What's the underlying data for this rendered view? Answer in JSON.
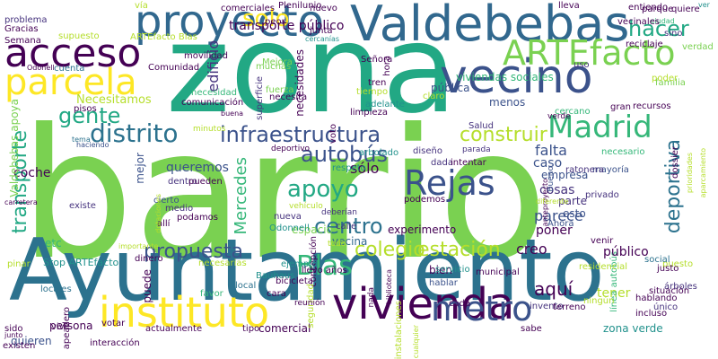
{
  "palette": {
    "lime": "#7ad151",
    "light_green": "#b5de2b",
    "yellow": "#fde725",
    "teal": "#21918c",
    "green": "#35b779",
    "sea": "#22a884",
    "blue": "#31688e",
    "steel": "#2c728e",
    "indigo": "#3b528b",
    "violet": "#46337e",
    "purple": "#440154",
    "aqua": "#1f9e89"
  },
  "words": [
    {
      "text": "barrio",
      "color": "lime",
      "v": false
    },
    {
      "text": "zona",
      "color": "sea",
      "v": false
    },
    {
      "text": "Ayuntamiento",
      "color": "steel",
      "v": false
    },
    {
      "text": "Valdebebas",
      "color": "blue",
      "v": false
    },
    {
      "text": "vivienda",
      "color": "purple",
      "v": false
    },
    {
      "text": "instituto",
      "color": "yellow",
      "v": false
    },
    {
      "text": "proyecto",
      "color": "blue",
      "v": false
    },
    {
      "text": "vecino",
      "color": "indigo",
      "v": false
    },
    {
      "text": "acceso",
      "color": "purple",
      "v": false
    },
    {
      "text": "parcela",
      "color": "yellow",
      "v": false
    },
    {
      "text": "ARTEfacto",
      "color": "lime",
      "v": false
    },
    {
      "text": "Madrid",
      "color": "green",
      "v": false
    },
    {
      "text": "Rejas",
      "color": "indigo",
      "v": false
    },
    {
      "text": "infraestructura",
      "color": "indigo",
      "v": false
    },
    {
      "text": "metro",
      "color": "indigo",
      "v": false
    },
    {
      "text": "Blas",
      "color": "green",
      "v": false
    },
    {
      "text": "solo",
      "color": "yellow",
      "v": false
    },
    {
      "text": "hacer",
      "color": "sea",
      "v": false
    },
    {
      "text": "distrito",
      "color": "steel",
      "v": false
    },
    {
      "text": "gente",
      "color": "sea",
      "v": false
    },
    {
      "text": "construir",
      "color": "light_green",
      "v": false
    },
    {
      "text": "apoyo",
      "color": "sea",
      "v": false
    },
    {
      "text": "autobús",
      "color": "indigo",
      "v": false
    },
    {
      "text": "centro",
      "color": "steel",
      "v": false
    },
    {
      "text": "colegio",
      "color": "light_green",
      "v": false
    },
    {
      "text": "estación",
      "color": "light_green",
      "v": false
    },
    {
      "text": "propuesta",
      "color": "indigo",
      "v": false
    },
    {
      "text": "transporte",
      "color": "sea",
      "v": true
    },
    {
      "text": "deportiva",
      "color": "steel",
      "v": true
    },
    {
      "text": "Mercedes",
      "color": "green",
      "v": true
    },
    {
      "text": "transporte público",
      "color": "purple",
      "v": false
    },
    {
      "text": "Plenilunio",
      "color": "purple",
      "v": false
    },
    {
      "text": "edificio",
      "color": "violet",
      "v": true
    },
    {
      "text": "necesidades",
      "color": "purple",
      "v": true
    },
    {
      "text": "Necesitamos",
      "color": "light_green",
      "v": false
    },
    {
      "text": "queremos",
      "color": "indigo",
      "v": false
    },
    {
      "text": "persona",
      "color": "purple",
      "v": false
    },
    {
      "text": "quieren",
      "color": "indigo",
      "v": false
    },
    {
      "text": "aquí",
      "color": "purple",
      "v": false
    },
    {
      "text": "creo",
      "color": "purple",
      "v": false
    },
    {
      "text": "parece",
      "color": "indigo",
      "v": false
    },
    {
      "text": "experimento",
      "color": "purple",
      "v": false
    },
    {
      "text": "caso",
      "color": "indigo",
      "v": false
    },
    {
      "text": "cosas",
      "color": "violet",
      "v": false
    },
    {
      "text": "empresa",
      "color": "indigo",
      "v": false
    },
    {
      "text": "poner",
      "color": "purple",
      "v": false
    },
    {
      "text": "vecina",
      "color": "blue",
      "v": false
    },
    {
      "text": "comercial",
      "color": "purple",
      "v": false
    },
    {
      "text": "falta",
      "color": "indigo",
      "v": false
    },
    {
      "text": "sólo",
      "color": "purple",
      "v": false
    },
    {
      "text": "coche",
      "color": "purple",
      "v": false
    },
    {
      "text": "problema",
      "color": "violet",
      "v": false
    },
    {
      "text": "tema",
      "color": "steel",
      "v": false
    },
    {
      "text": "mejor",
      "color": "indigo",
      "v": true
    },
    {
      "text": "puede",
      "color": "purple",
      "v": true
    },
    {
      "text": "tener",
      "color": "light_green",
      "v": false
    },
    {
      "text": "ARTEfacto Blas",
      "color": "light_green",
      "v": false
    },
    {
      "text": "Stop ARTEfacto",
      "color": "teal",
      "v": false
    },
    {
      "text": "Valdebebas apoya",
      "color": "lime",
      "v": true
    },
    {
      "text": "línea autobús",
      "color": "green",
      "v": true
    },
    {
      "text": "viviendas sociales",
      "color": "green",
      "v": false
    },
    {
      "text": "zona verde",
      "color": "teal",
      "v": false
    },
    {
      "text": "público",
      "color": "purple",
      "v": false
    },
    {
      "text": "pública",
      "color": "indigo",
      "v": false
    },
    {
      "text": "menos",
      "color": "indigo",
      "v": false
    },
    {
      "text": "etc",
      "color": "green",
      "v": false
    },
    {
      "text": "espacio",
      "color": "lime",
      "v": false
    },
    {
      "text": "podemos",
      "color": "purple",
      "v": false
    },
    {
      "text": "Odonnell",
      "color": "teal",
      "v": false
    },
    {
      "text": "movilidad",
      "color": "purple",
      "v": false
    },
    {
      "text": "comunicación",
      "color": "purple",
      "v": false
    },
    {
      "text": "Mejora",
      "color": "lime",
      "v": false
    },
    {
      "text": "nueva",
      "color": "violet",
      "v": false
    },
    {
      "text": "calle",
      "color": "violet",
      "v": false
    },
    {
      "text": "bien",
      "color": "purple",
      "v": false
    },
    {
      "text": "hablar",
      "color": "indigo",
      "v": false
    },
    {
      "text": "parte",
      "color": "violet",
      "v": false
    },
    {
      "text": "esto",
      "color": "indigo",
      "v": false
    },
    {
      "text": "Ahora",
      "color": "indigo",
      "v": false
    },
    {
      "text": "venir",
      "color": "purple",
      "v": false
    },
    {
      "text": "privado",
      "color": "violet",
      "v": false
    },
    {
      "text": "mayoría",
      "color": "indigo",
      "v": false
    },
    {
      "text": "ratonera",
      "color": "violet",
      "v": false
    },
    {
      "text": "municipal",
      "color": "purple",
      "v": false
    },
    {
      "text": "dada",
      "color": "violet",
      "v": false
    },
    {
      "text": "intentar",
      "color": "purple",
      "v": false
    },
    {
      "text": "diseño",
      "color": "violet",
      "v": false
    },
    {
      "text": "parada",
      "color": "violet",
      "v": false
    },
    {
      "text": "arbolado",
      "color": "teal",
      "v": false
    },
    {
      "text": "respeto",
      "color": "teal",
      "v": false
    },
    {
      "text": "Salud",
      "color": "violet",
      "v": false
    },
    {
      "text": "hora",
      "color": "purple",
      "v": true
    },
    {
      "text": "tren",
      "color": "purple",
      "v": false
    },
    {
      "text": "tiempo",
      "color": "light_green",
      "v": false
    },
    {
      "text": "adelante",
      "color": "teal",
      "v": false
    },
    {
      "text": "limpieza",
      "color": "purple",
      "v": false
    },
    {
      "text": "claro",
      "color": "light_green",
      "v": false
    },
    {
      "text": "gran",
      "color": "purple",
      "v": false
    },
    {
      "text": "cercano",
      "color": "green",
      "v": false
    },
    {
      "text": "verde",
      "color": "purple",
      "v": false
    },
    {
      "text": "recursos",
      "color": "purple",
      "v": false
    },
    {
      "text": "necesario",
      "color": "green",
      "v": false
    },
    {
      "text": "familia",
      "color": "lime",
      "v": false
    },
    {
      "text": "dossier",
      "color": "purple",
      "v": true
    },
    {
      "text": "poder",
      "color": "light_green",
      "v": false
    },
    {
      "text": "prioridades",
      "color": "light_green",
      "v": true
    },
    {
      "text": "aparcamiento",
      "color": "light_green",
      "v": true
    },
    {
      "text": "reciclaje",
      "color": "purple",
      "v": false
    },
    {
      "text": "verdad",
      "color": "lime",
      "v": false
    },
    {
      "text": "sino",
      "color": "violet",
      "v": false
    },
    {
      "text": "ciudad",
      "color": "green",
      "v": false
    },
    {
      "text": "parque",
      "color": "purple",
      "v": false
    },
    {
      "text": "quiere",
      "color": "purple",
      "v": false
    },
    {
      "text": "ver",
      "color": "teal",
      "v": false
    },
    {
      "text": "lleva",
      "color": "purple",
      "v": false
    },
    {
      "text": "entiendo",
      "color": "purple",
      "v": false
    },
    {
      "text": "vecinales",
      "color": "purple",
      "v": false
    },
    {
      "text": "uso",
      "color": "violet",
      "v": false
    },
    {
      "text": "comerciales",
      "color": "purple",
      "v": false
    },
    {
      "text": "nuevo",
      "color": "purple",
      "v": false
    },
    {
      "text": "peor",
      "color": "purple",
      "v": false
    },
    {
      "text": "cercanías",
      "color": "teal",
      "v": false
    },
    {
      "text": "junta",
      "color": "purple",
      "v": false
    },
    {
      "text": "vía",
      "color": "light_green",
      "v": false
    },
    {
      "text": "supuesto",
      "color": "light_green",
      "v": false
    },
    {
      "text": "Gracias",
      "color": "purple",
      "v": false
    },
    {
      "text": "Semana",
      "color": "purple",
      "v": false
    },
    {
      "text": "Odonell",
      "color": "purple",
      "v": false
    },
    {
      "text": "cuenta",
      "color": "steel",
      "v": false
    },
    {
      "text": "Comunidad",
      "color": "purple",
      "v": false
    },
    {
      "text": "pisos",
      "color": "purple",
      "v": false
    },
    {
      "text": "haciendo",
      "color": "indigo",
      "v": false
    },
    {
      "text": "necesidad",
      "color": "green",
      "v": false
    },
    {
      "text": "buena",
      "color": "purple",
      "v": false
    },
    {
      "text": "muchas",
      "color": "lime",
      "v": false
    },
    {
      "text": "superficie",
      "color": "violet",
      "v": true
    },
    {
      "text": "fuerza",
      "color": "lime",
      "v": false
    },
    {
      "text": "necesita",
      "color": "purple",
      "v": false
    },
    {
      "text": "Señora",
      "color": "purple",
      "v": false
    },
    {
      "text": "voto",
      "color": "purple",
      "v": true
    },
    {
      "text": "minutos",
      "color": "light_green",
      "v": false
    },
    {
      "text": "dentro",
      "color": "violet",
      "v": false
    },
    {
      "text": "pueden",
      "color": "purple",
      "v": false
    },
    {
      "text": "medio",
      "color": "violet",
      "v": false
    },
    {
      "text": "podamos",
      "color": "purple",
      "v": false
    },
    {
      "text": "cierto",
      "color": "indigo",
      "v": false
    },
    {
      "text": "allí",
      "color": "purple",
      "v": false
    },
    {
      "text": "existe",
      "color": "violet",
      "v": false
    },
    {
      "text": "dotaciones",
      "color": "light_green",
      "v": true
    },
    {
      "text": "deportivo",
      "color": "purple",
      "v": false
    },
    {
      "text": "concepción",
      "color": "purple",
      "v": true
    },
    {
      "text": "deberían",
      "color": "violet",
      "v": false
    },
    {
      "text": "vehículo",
      "color": "light_green",
      "v": false
    },
    {
      "text": "todo",
      "color": "light_green",
      "v": false
    },
    {
      "text": "importante",
      "color": "light_green",
      "v": false
    },
    {
      "text": "necesarias",
      "color": "light_green",
      "v": false
    },
    {
      "text": "Bauhaus",
      "color": "teal",
      "v": false
    },
    {
      "text": "ejemplo",
      "color": "teal",
      "v": false
    },
    {
      "text": "llevo años",
      "color": "purple",
      "v": false
    },
    {
      "text": "servicio",
      "color": "teal",
      "v": false
    },
    {
      "text": "residencial",
      "color": "light_green",
      "v": false
    },
    {
      "text": "puesto",
      "color": "light_green",
      "v": false
    },
    {
      "text": "justo",
      "color": "purple",
      "v": false
    },
    {
      "text": "social",
      "color": "steel",
      "v": false
    },
    {
      "text": "árboles",
      "color": "violet",
      "v": false
    },
    {
      "text": "situación",
      "color": "purple",
      "v": false
    },
    {
      "text": "único",
      "color": "violet",
      "v": false
    },
    {
      "text": "incluso",
      "color": "purple",
      "v": false
    },
    {
      "text": "hablando",
      "color": "purple",
      "v": false
    },
    {
      "text": "ningún",
      "color": "light_green",
      "v": false
    },
    {
      "text": "invento",
      "color": "violet",
      "v": false
    },
    {
      "text": "terreno",
      "color": "purple",
      "v": false
    },
    {
      "text": "cada",
      "color": "purple",
      "v": false
    },
    {
      "text": "biblioteca",
      "color": "purple",
      "v": true
    },
    {
      "text": "seguridad",
      "color": "light_green",
      "v": true
    },
    {
      "text": "bicicleta",
      "color": "purple",
      "v": false
    },
    {
      "text": "cara",
      "color": "purple",
      "v": false
    },
    {
      "text": "local",
      "color": "steel",
      "v": false
    },
    {
      "text": "favor",
      "color": "green",
      "v": false
    },
    {
      "text": "tipo",
      "color": "purple",
      "v": false
    },
    {
      "text": "reunión",
      "color": "purple",
      "v": false
    },
    {
      "text": "nada",
      "color": "purple",
      "v": true
    },
    {
      "text": "cualquier",
      "color": "light_green",
      "v": true
    },
    {
      "text": "instalaciones",
      "color": "light_green",
      "v": true
    },
    {
      "text": "sabe",
      "color": "purple",
      "v": false
    },
    {
      "text": "actualmente",
      "color": "purple",
      "v": false
    },
    {
      "text": "interacción",
      "color": "purple",
      "v": false
    },
    {
      "text": "votar",
      "color": "purple",
      "v": false
    },
    {
      "text": "dinero",
      "color": "purple",
      "v": false
    },
    {
      "text": "vive",
      "color": "purple",
      "v": false
    },
    {
      "text": "apeadero",
      "color": "purple",
      "v": true
    },
    {
      "text": "locales",
      "color": "steel",
      "v": false
    },
    {
      "text": "sido",
      "color": "purple",
      "v": false
    },
    {
      "text": "junto",
      "color": "purple",
      "v": false
    },
    {
      "text": "existen",
      "color": "purple",
      "v": false
    },
    {
      "text": "pinar",
      "color": "light_green",
      "v": false
    },
    {
      "text": "carretera",
      "color": "purple",
      "v": false
    },
    {
      "text": "Bueno",
      "color": "indigo",
      "v": true
    },
    {
      "text": "anteproyecto",
      "color": "purple",
      "v": true
    },
    {
      "text": "diferente",
      "color": "light_green",
      "v": false
    },
    {
      "text": "autobuses",
      "color": "light_green",
      "v": false
    },
    {
      "text": "mentira",
      "color": "light_green",
      "v": false
    }
  ]
}
